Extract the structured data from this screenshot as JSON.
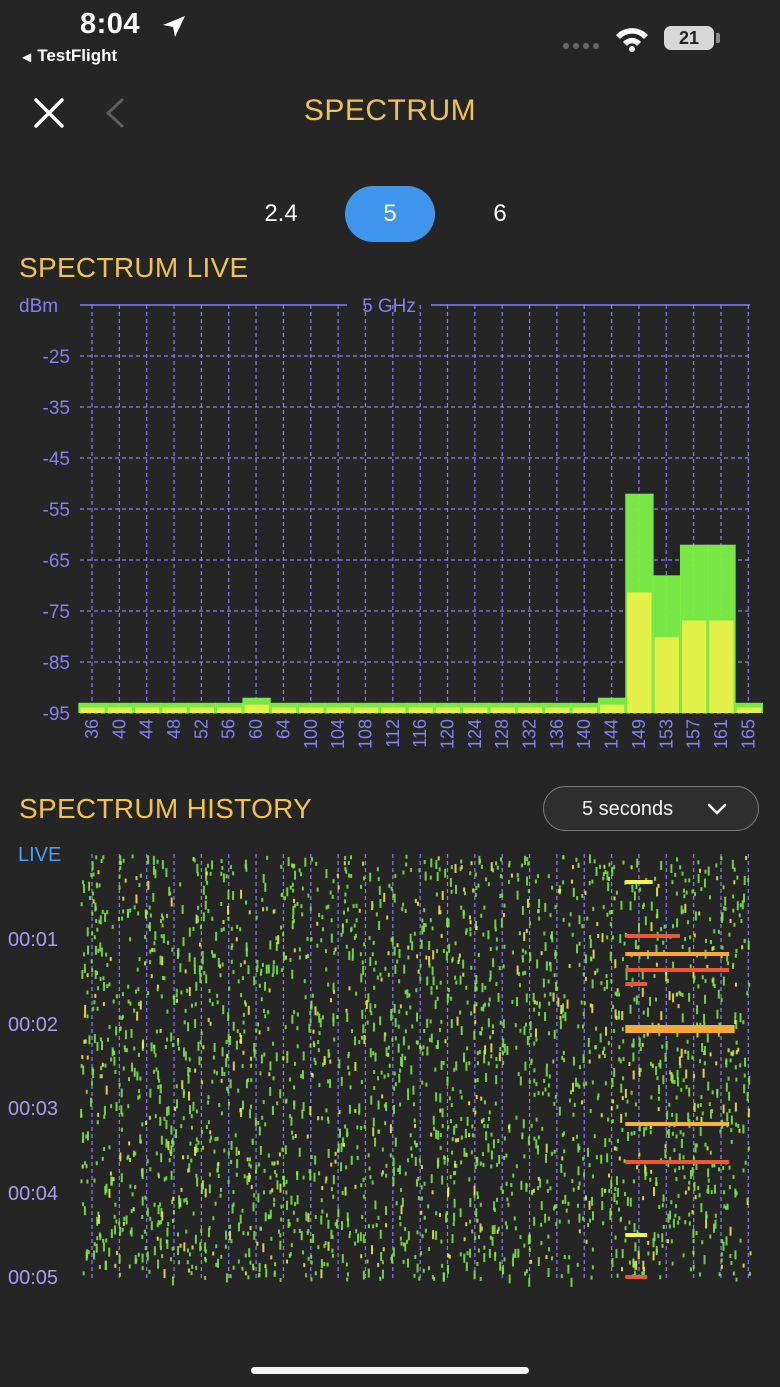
{
  "status_bar": {
    "time": "8:04",
    "back_app": "TestFlight",
    "battery": "21",
    "location_icon": "location-arrow-icon",
    "wifi_icon": "wifi-icon"
  },
  "nav": {
    "title": "SPECTRUM",
    "close_icon": "close-icon",
    "back_icon": "chevron-left-icon"
  },
  "bands": {
    "options": [
      "2.4",
      "5",
      "6"
    ],
    "selected": "5"
  },
  "spectrum_live": {
    "title": "SPECTRUM LIVE"
  },
  "spectrum_history": {
    "title": "SPECTRUM HISTORY",
    "interval": "5 seconds",
    "live_label": "LIVE",
    "time_labels": [
      "00:01",
      "00:02",
      "00:03",
      "00:04",
      "00:05"
    ]
  },
  "colors": {
    "background": "#252525",
    "accent_title": "#f0c24f",
    "selected_band": "#3f95ec",
    "grid": "#8a7ff0",
    "signal_green": "#7cf046",
    "signal_yellow": "#f7f24a",
    "live_label": "#4e9fe9"
  },
  "chart_data": [
    {
      "type": "area",
      "title": "5 GHz",
      "ylabel": "dBm",
      "ylim": [
        -95,
        -15
      ],
      "yticks": [
        -25,
        -35,
        -45,
        -55,
        -65,
        -75,
        -85,
        -95
      ],
      "categories": [
        "36",
        "40",
        "44",
        "48",
        "52",
        "56",
        "60",
        "64",
        "100",
        "104",
        "108",
        "112",
        "116",
        "120",
        "124",
        "128",
        "132",
        "136",
        "140",
        "144",
        "149",
        "153",
        "157",
        "161",
        "165"
      ],
      "series": [
        {
          "values": [
            -93,
            -93,
            -93,
            -93,
            -93,
            -93,
            -92,
            -93,
            -93,
            -93,
            -93,
            -93,
            -93,
            -93,
            -93,
            -93,
            -93,
            -93,
            -93,
            -92,
            -52,
            -68,
            -62,
            -62,
            -93
          ]
        }
      ],
      "grid": true
    },
    {
      "type": "heatmap",
      "title": "SPECTRUM HISTORY",
      "categories": [
        "36",
        "40",
        "44",
        "48",
        "52",
        "56",
        "60",
        "64",
        "100",
        "104",
        "108",
        "112",
        "116",
        "120",
        "124",
        "128",
        "132",
        "136",
        "140",
        "144",
        "149",
        "153",
        "157",
        "161",
        "165"
      ],
      "y": [
        "LIVE",
        "00:01",
        "00:02",
        "00:03",
        "00:04",
        "00:05"
      ],
      "strong_signal_rows": [
        "00:01",
        "00:02"
      ],
      "strong_signal_channels": [
        "149",
        "153",
        "157",
        "161"
      ]
    }
  ]
}
